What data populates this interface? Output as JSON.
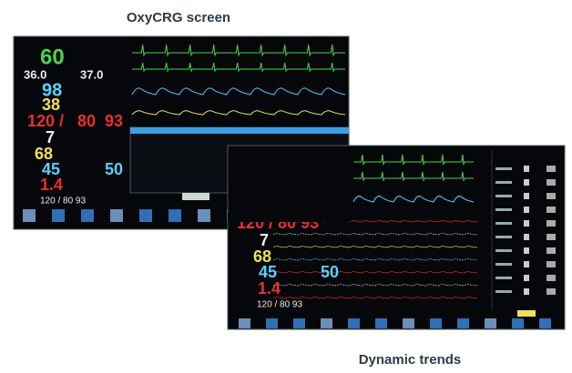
{
  "header": {
    "title": "OxyCRG screen"
  },
  "screens": [
    {
      "vitals": [
        "60",
        "36.0",
        "37.0",
        "98",
        "38",
        "120 /",
        "80",
        "93",
        "7",
        "68",
        "45",
        "50",
        "1.4",
        "120 / 80 93"
      ]
    },
    {
      "vitals": [
        "120 / 80 93",
        "7",
        "68",
        "45",
        "50",
        "1.4",
        "120 / 80 93"
      ]
    }
  ],
  "footer": {
    "caption": "Dynamic trends"
  }
}
